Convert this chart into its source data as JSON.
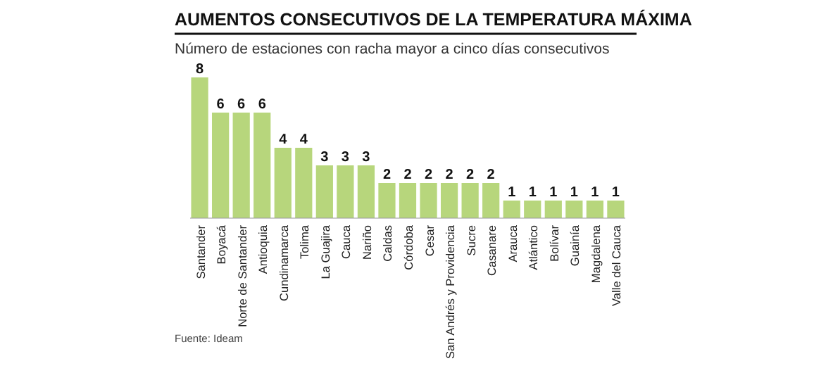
{
  "chart_data": {
    "type": "bar",
    "title": "AUMENTOS CONSECUTIVOS DE LA TEMPERATURA MÁXIMA",
    "subtitle": "Número de estaciones con racha mayor a cinco días consecutivos",
    "categories": [
      "Santander",
      "Boyacá",
      "Norte de Santander",
      "Antioquia",
      "Cundinamarca",
      "Tolima",
      "La Guajira",
      "Cauca",
      "Nariño",
      "Caldas",
      "Córdoba",
      "Cesar",
      "San Andrés y Providencia",
      "Sucre",
      "Casanare",
      "Arauca",
      "Atlántico",
      "Bolívar",
      "Guainía",
      "Magdalena",
      "Valle del Cauca"
    ],
    "values": [
      8,
      6,
      6,
      6,
      4,
      4,
      3,
      3,
      3,
      2,
      2,
      2,
      2,
      2,
      2,
      1,
      1,
      1,
      1,
      1,
      1
    ],
    "color": "#b7d67c",
    "ylim": [
      0,
      8
    ],
    "data_labels": true,
    "annotations": [
      "Fuente: Ideam"
    ]
  }
}
